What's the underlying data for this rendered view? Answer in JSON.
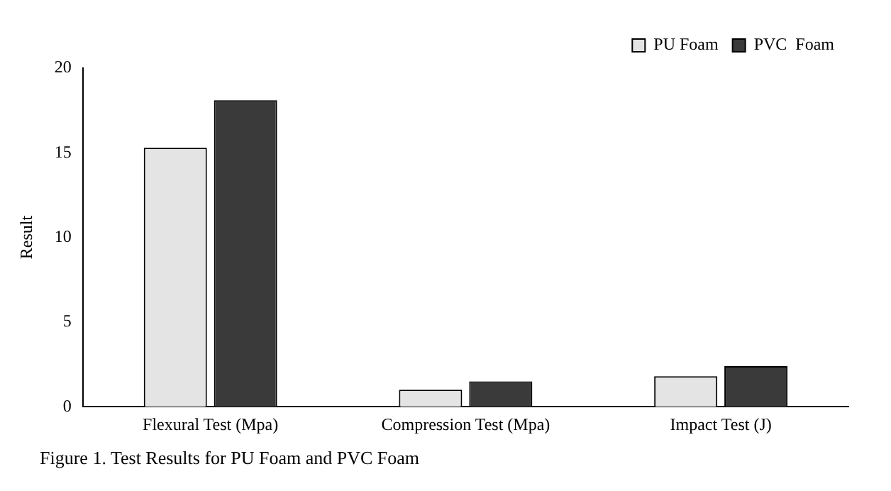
{
  "chart_data": {
    "type": "bar",
    "title": "Figure 1. Test Results for PU Foam and PVC Foam",
    "ylabel": "Result",
    "categories": [
      "Flexural Test (Mpa)",
      "Compression Test (Mpa)",
      "Impact Test (J)"
    ],
    "series": [
      {
        "name": "PU Foam",
        "color": "#e4e4e4",
        "values": [
          15.3,
          1.0,
          1.8
        ]
      },
      {
        "name": "PVC  Foam",
        "color": "#3a3a3a",
        "values": [
          18.1,
          1.5,
          2.4
        ]
      }
    ],
    "ylim": [
      0,
      20
    ],
    "yticks": [
      0,
      5,
      10,
      15,
      20
    ],
    "grid": false,
    "legend": "top right"
  }
}
